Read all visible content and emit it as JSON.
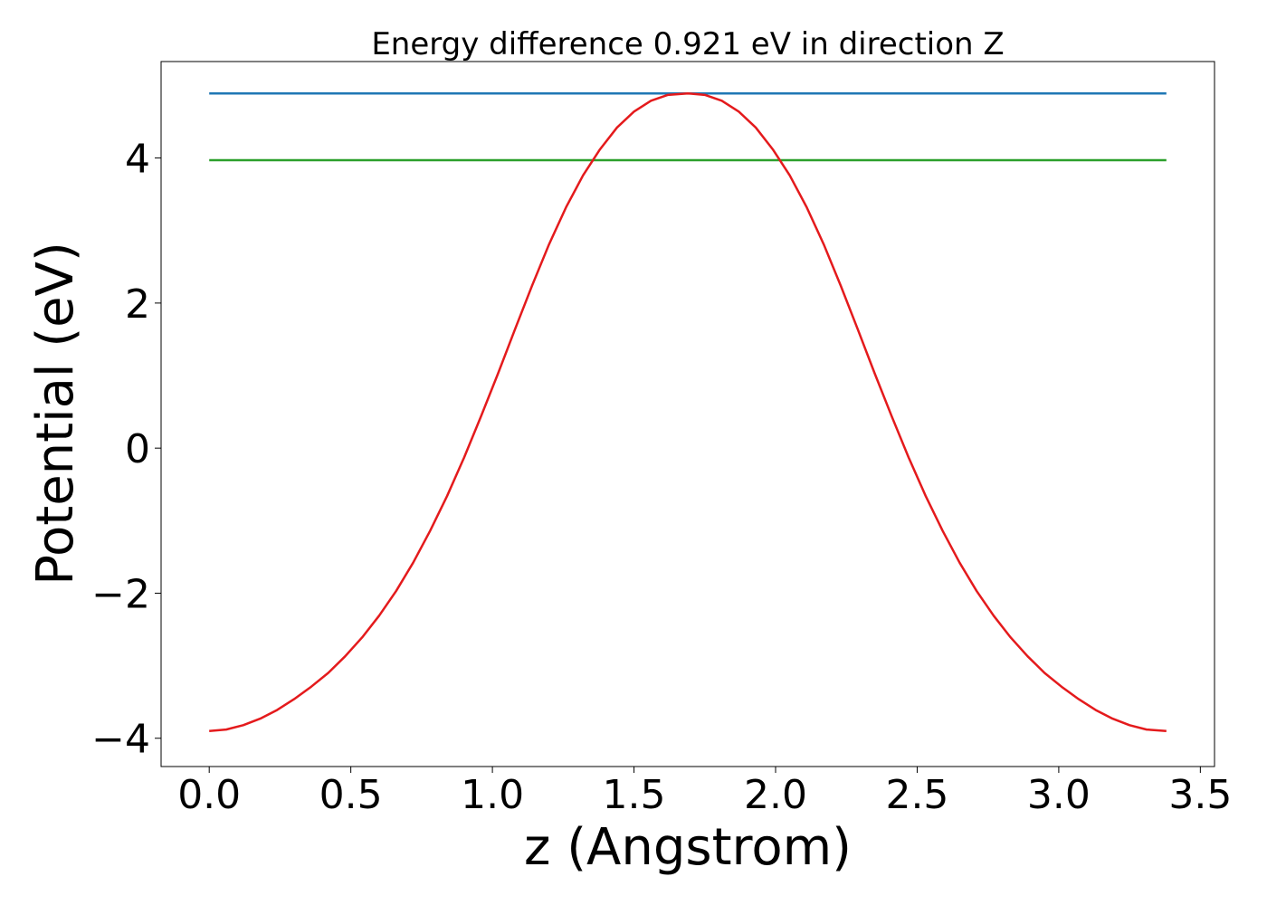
{
  "chart_data": {
    "type": "line",
    "title": "Energy difference 0.921 eV in direction Z",
    "xlabel": "z (Angstrom)",
    "ylabel": "Potential (eV)",
    "xlim": [
      -0.17,
      3.55
    ],
    "ylim": [
      -4.39,
      5.33
    ],
    "xticks": [
      0.0,
      0.5,
      1.0,
      1.5,
      2.0,
      2.5,
      3.0,
      3.5
    ],
    "xtick_labels": [
      "0.0",
      "0.5",
      "1.0",
      "1.5",
      "2.0",
      "2.5",
      "3.0",
      "3.5"
    ],
    "yticks": [
      -4,
      -2,
      0,
      2,
      4
    ],
    "ytick_labels": [
      "−4",
      "−2",
      "0",
      "2",
      "4"
    ],
    "grid": false,
    "legend": false,
    "series": [
      {
        "color": "#1f77b4",
        "x": [
          0.0,
          3.38
        ],
        "y": [
          4.89,
          4.89
        ]
      },
      {
        "color": "#2ca02c",
        "x": [
          0.0,
          3.38
        ],
        "y": [
          3.97,
          3.97
        ]
      },
      {
        "color": "#e41a1c",
        "x": [
          0.0,
          0.06,
          0.12,
          0.18,
          0.24,
          0.3,
          0.36,
          0.42,
          0.48,
          0.54,
          0.6,
          0.66,
          0.72,
          0.78,
          0.84,
          0.9,
          0.96,
          1.02,
          1.08,
          1.14,
          1.2,
          1.26,
          1.32,
          1.38,
          1.44,
          1.5,
          1.56,
          1.62,
          1.69,
          1.75,
          1.81,
          1.87,
          1.93,
          1.99,
          2.05,
          2.11,
          2.17,
          2.23,
          2.29,
          2.35,
          2.41,
          2.47,
          2.53,
          2.59,
          2.65,
          2.71,
          2.77,
          2.83,
          2.89,
          2.95,
          3.01,
          3.07,
          3.13,
          3.19,
          3.25,
          3.31,
          3.38
        ],
        "y": [
          -3.9,
          -3.88,
          -3.82,
          -3.73,
          -3.61,
          -3.46,
          -3.29,
          -3.1,
          -2.87,
          -2.61,
          -2.31,
          -1.97,
          -1.58,
          -1.14,
          -0.66,
          -0.13,
          0.44,
          1.03,
          1.64,
          2.24,
          2.81,
          3.32,
          3.76,
          4.12,
          4.42,
          4.64,
          4.79,
          4.87,
          4.89,
          4.87,
          4.79,
          4.64,
          4.42,
          4.12,
          3.76,
          3.32,
          2.81,
          2.24,
          1.64,
          1.03,
          0.44,
          -0.13,
          -0.66,
          -1.14,
          -1.58,
          -1.97,
          -2.31,
          -2.61,
          -2.87,
          -3.1,
          -3.29,
          -3.46,
          -3.61,
          -3.73,
          -3.82,
          -3.88,
          -3.9
        ]
      }
    ]
  }
}
